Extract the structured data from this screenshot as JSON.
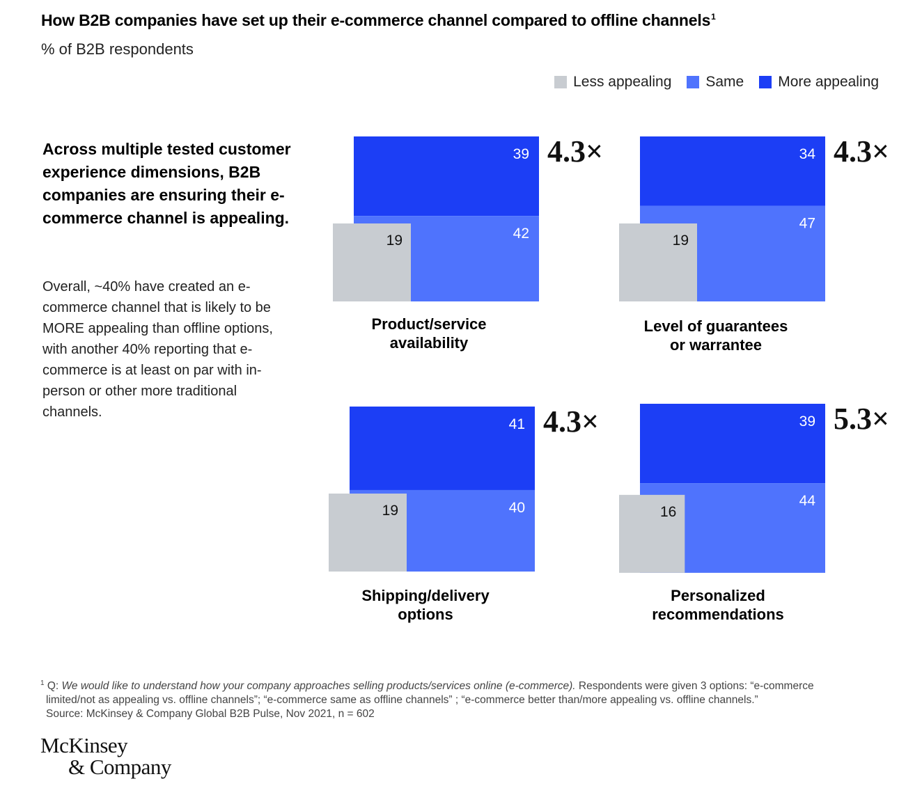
{
  "header": {
    "title": "How B2B companies have set up their e-commerce channel compared to offline channels",
    "title_footnote_mark": "1",
    "subtitle": "% of B2B respondents"
  },
  "legend": [
    {
      "label": "Less appealing",
      "color": "#c8ccd1"
    },
    {
      "label": "Same",
      "color": "#4f73fd"
    },
    {
      "label": "More appealing",
      "color": "#1c3ef5"
    }
  ],
  "sidebar": {
    "lead": "Across multiple tested customer experience dimensions, B2B companies are ensuring their e-commerce channel is appealing.",
    "body": "Overall, ~40% have created an e-commerce channel that is likely to be MORE appealing than offline options, with another 40% reporting that e-commerce is at least on par with in-person or other more traditional channels."
  },
  "chart_data": {
    "type": "area",
    "series_names": [
      "Less appealing",
      "Same",
      "More appealing"
    ],
    "charts": [
      {
        "label_line1": "Product/service",
        "label_line2": "availability",
        "less": 19,
        "same": 42,
        "more": 39,
        "multiplier": "4.3×"
      },
      {
        "label_line1": "Level of guarantees",
        "label_line2": "or warrantee",
        "less": 19,
        "same": 47,
        "more": 34,
        "multiplier": "4.3×"
      },
      {
        "label_line1": "Shipping/delivery",
        "label_line2": "options",
        "less": 19,
        "same": 40,
        "more": 41,
        "multiplier": "4.3×"
      },
      {
        "label_line1": "Personalized",
        "label_line2": "recommendations",
        "less": 16,
        "same": 44,
        "more": 39,
        "multiplier": "5.3×"
      }
    ]
  },
  "footnote": {
    "mark": "1",
    "q_prefix": "Q: ",
    "question": "We would like to understand how your company approaches selling products/services online (e-commerce).",
    "options_line1": " Respondents were given 3 options: “e-commerce",
    "options_line2": "limited/not as appealing vs. offline channels”; “e-commerce same as offline channels” ; “e-commerce better than/more appealing vs. offline channels.”",
    "source": "Source: McKinsey & Company Global B2B Pulse, Nov 2021, n = 602"
  },
  "logo": {
    "line1": "McKinsey",
    "line2": "& Company"
  }
}
